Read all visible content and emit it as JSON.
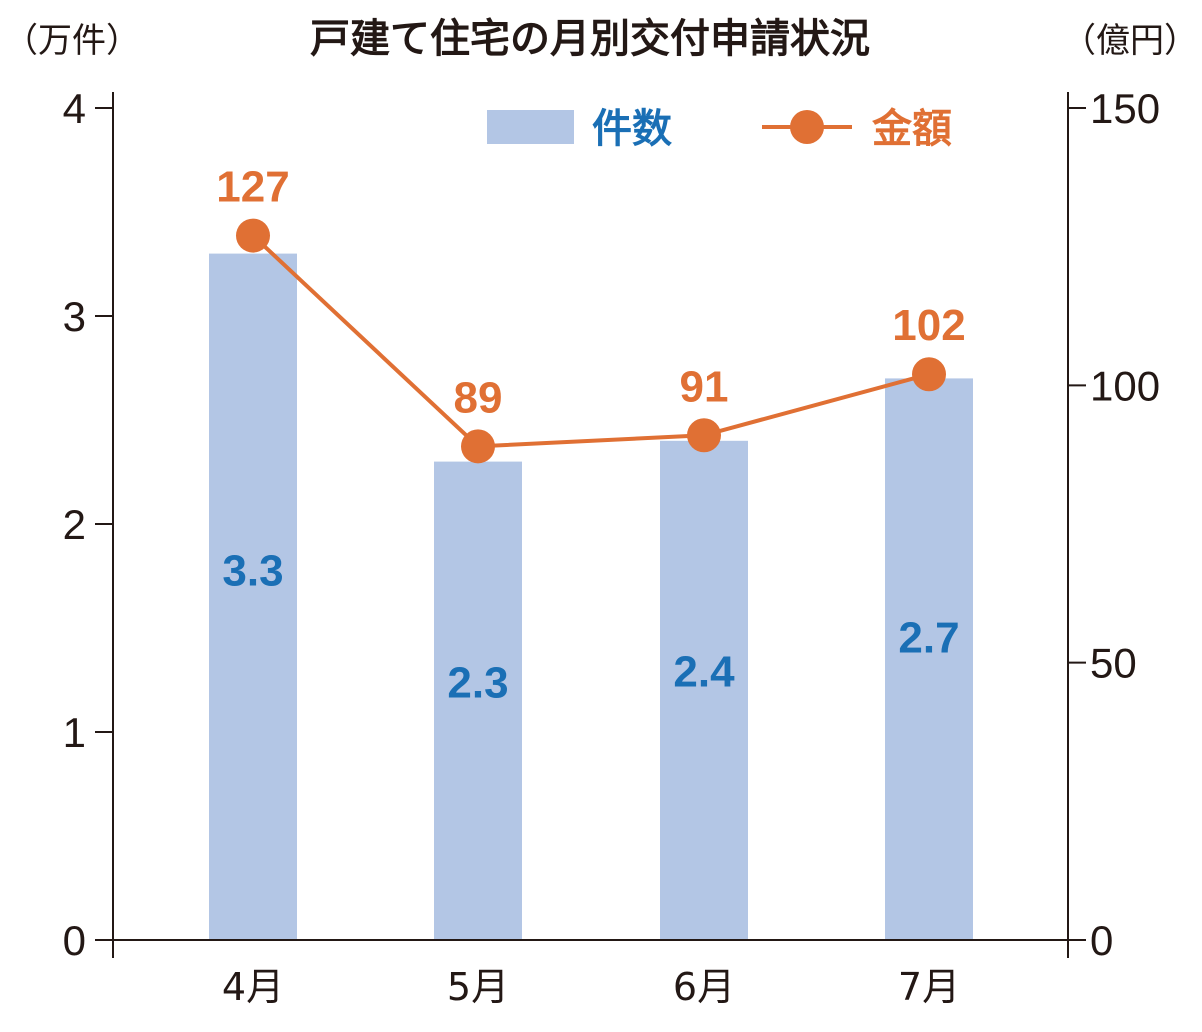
{
  "chart_data": {
    "type": "bar",
    "title": "戸建て住宅の月別交付申請状況",
    "left_unit": "（万件）",
    "right_unit": "（億円）",
    "categories": [
      "4月",
      "5月",
      "6月",
      "7月"
    ],
    "series": [
      {
        "name": "件数",
        "type": "bar",
        "axis": "left",
        "values": [
          3.3,
          2.3,
          2.4,
          2.7
        ],
        "labels": [
          "3.3",
          "2.3",
          "2.4",
          "2.7"
        ],
        "color": "#b3c6e5",
        "label_color": "#1a6fb5"
      },
      {
        "name": "金額",
        "type": "line",
        "axis": "right",
        "values": [
          127,
          89,
          91,
          102
        ],
        "labels": [
          "127",
          "89",
          "91",
          "102"
        ],
        "color": "#e07034"
      }
    ],
    "y_left": {
      "min": 0,
      "max": 4,
      "ticks": [
        "0",
        "1",
        "2",
        "3",
        "4"
      ]
    },
    "y_right": {
      "min": 0,
      "max": 150,
      "ticks": [
        "0",
        "50",
        "100",
        "150"
      ]
    },
    "legend": "top-right",
    "grid": false
  }
}
